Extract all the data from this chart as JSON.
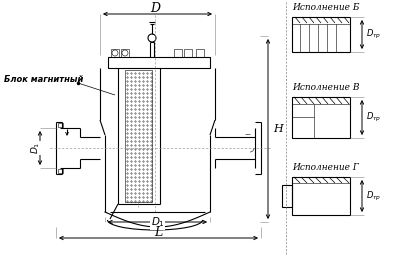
{
  "bg_color": "#ffffff",
  "line_color": "#000000",
  "fig_width": 4.0,
  "fig_height": 2.57,
  "dpi": 100,
  "labels": {
    "block": "Блок магнитный",
    "exec_b": "Исполнение Б",
    "exec_v": "Исполнение В",
    "exec_g": "Исполнение Г"
  }
}
